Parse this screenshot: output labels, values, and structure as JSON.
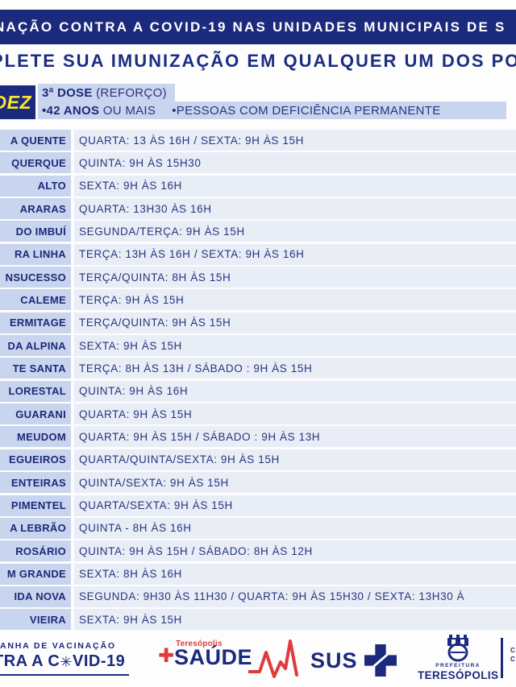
{
  "header": {
    "line1": "NAÇÃO CONTRA A COVID-19 NAS UNIDADES MUNICIPAIS DE S",
    "line2": "PLETE SUA IMUNIZAÇÃO EM QUALQUER UM DOS PO"
  },
  "eligibility": {
    "month_badge": "DEZ",
    "dose_bold": "3ª DOSE",
    "dose_rest": " (REFORÇO)",
    "age_bold": "•42 ANOS",
    "age_rest": " OU MAIS",
    "group": "•PESSOAS COM DEFICIÊNCIA PERMANENTE"
  },
  "schedule": {
    "rows": [
      {
        "unit": "A QUENTE",
        "hours": "QUARTA: 13 ÀS 16H / SEXTA: 9H ÀS 15H"
      },
      {
        "unit": "QUERQUE",
        "hours": "QUINTA: 9H ÀS 15H30"
      },
      {
        "unit": "ALTO",
        "hours": "SEXTA: 9H ÀS 16H"
      },
      {
        "unit": "ARARAS",
        "hours": "QUARTA: 13H30 ÀS 16H"
      },
      {
        "unit": "DO IMBUÍ",
        "hours": "SEGUNDA/TERÇA: 9H ÀS 15H"
      },
      {
        "unit": "RA LINHA",
        "hours": "TERÇA: 13H ÀS 16H / SEXTA: 9H ÀS 16H"
      },
      {
        "unit": "NSUCESSO",
        "hours": "TERÇA/QUINTA: 8H ÀS 15H"
      },
      {
        "unit": "CALEME",
        "hours": "TERÇA: 9H ÀS 15H"
      },
      {
        "unit": "ERMITAGE",
        "hours": "TERÇA/QUINTA: 9H ÀS 15H"
      },
      {
        "unit": "DA ALPINA",
        "hours": "SEXTA: 9H ÀS 15H"
      },
      {
        "unit": "TE SANTA",
        "hours": "TERÇA: 8H ÀS 13H / SÁBADO : 9H ÀS 15H"
      },
      {
        "unit": "LORESTAL",
        "hours": "QUINTA: 9H ÀS 16H"
      },
      {
        "unit": "GUARANI",
        "hours": "QUARTA: 9H ÀS 15H"
      },
      {
        "unit": "MEUDOM",
        "hours": "QUARTA: 9H ÀS 15H / SÁBADO : 9H ÀS 13H"
      },
      {
        "unit": "EGUEIROS",
        "hours": "QUARTA/QUINTA/SEXTA: 9H ÀS 15H"
      },
      {
        "unit": "ENTEIRAS",
        "hours": "QUINTA/SEXTA: 9H ÀS 15H"
      },
      {
        "unit": "PIMENTEL",
        "hours": "QUARTA/SEXTA: 9H ÀS 15H"
      },
      {
        "unit": "A LEBRÃO",
        "hours": "QUINTA - 8H ÀS 16H"
      },
      {
        "unit": "ROSÁRIO",
        "hours": "QUINTA: 9H ÀS 15H / SÁBADO: 8H ÀS 12H"
      },
      {
        "unit": "M GRANDE",
        "hours": "SEXTA: 8H ÀS 16H"
      },
      {
        "unit": "IDA NOVA",
        "hours": "SEGUNDA: 9H30 ÀS 11H30 / QUARTA: 9H ÀS 15H30 / SEXTA: 13H30 À"
      },
      {
        "unit": "VIEIRA",
        "hours": "SEXTA: 9H ÀS 15H"
      }
    ]
  },
  "footer": {
    "campaign_line1": "PANHA DE VACINAÇÃO",
    "campaign_line2_pre": "TRA A C",
    "campaign_virus_glyph": "✳",
    "campaign_line2_post": "VID-19",
    "saude_plus": "✚",
    "saude_city": "Teresópolis",
    "saude_word": "SAÚDE",
    "sus_label": "SUS",
    "prefeitura_small": "PREFEITURA",
    "prefeitura_big": "TERESÓPOLIS",
    "edge_fragment": "C\nC"
  },
  "colors": {
    "navy": "#1b2a7d",
    "text_navy": "#27357f",
    "yellow": "#f9e62c",
    "label_blue": "#c9d4ee",
    "row_blue": "#e9edf6",
    "red": "#e13a3b"
  }
}
